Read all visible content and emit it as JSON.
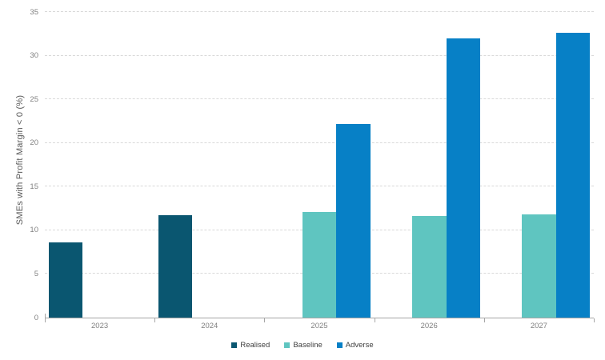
{
  "chart_data": {
    "type": "bar",
    "title": "",
    "categories": [
      "2023",
      "2024",
      "2025",
      "2026",
      "2027"
    ],
    "series": [
      {
        "name": "Realised",
        "color": "#0a5670",
        "values": [
          8.6,
          11.7,
          null,
          null,
          null
        ]
      },
      {
        "name": "Baseline",
        "color": "#5fc5c0",
        "values": [
          null,
          null,
          12.1,
          11.6,
          11.8
        ]
      },
      {
        "name": "Adverse",
        "color": "#0780c6",
        "values": [
          null,
          null,
          22.2,
          32.0,
          32.6
        ]
      }
    ],
    "xlabel": "",
    "ylabel": "SMEs with Profit Margin < 0 (%)",
    "ylim": [
      0,
      35
    ],
    "yticks": [
      0,
      5,
      10,
      15,
      20,
      25,
      30,
      35
    ],
    "grid": "horizontal-dashed",
    "legend_position": "bottom",
    "colors": {
      "grid": "#d9d9d9",
      "axis": "#a6a6a6",
      "tick_label": "#808080",
      "axis_title": "#595959",
      "legend_text": "#404040",
      "background": "#ffffff"
    }
  }
}
